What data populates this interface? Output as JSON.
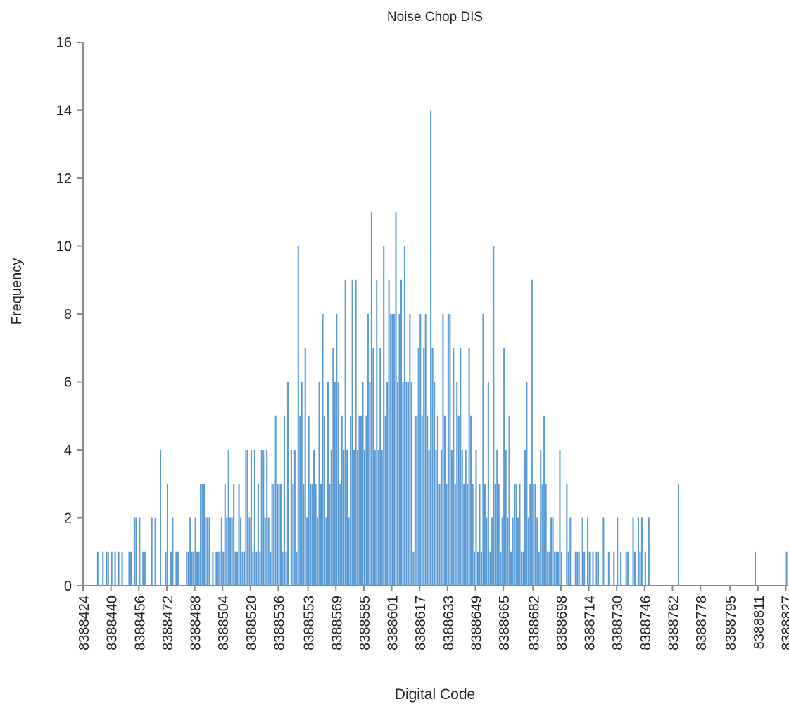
{
  "chart_data": {
    "type": "histogram",
    "title": "Noise Chop DIS",
    "x_label": "Digital Code",
    "y_label": "Frequency",
    "color": "#5b9bd5",
    "ylim": [
      0,
      16
    ],
    "yticks": [
      0,
      2,
      4,
      6,
      8,
      10,
      12,
      14,
      16
    ],
    "xlim": [
      8388424,
      8388828
    ],
    "xticks": [
      8388424,
      8388440,
      8388456,
      8388472,
      8388488,
      8388504,
      8388520,
      8388536,
      8388553,
      8388569,
      8388585,
      8388601,
      8388617,
      8388633,
      8388649,
      8388665,
      8388682,
      8388698,
      8388714,
      8388730,
      8388746,
      8388762,
      8388778,
      8388795,
      8388811,
      8388827
    ],
    "bins": [
      8388424,
      8388425,
      8388426,
      8388427,
      8388428,
      8388429,
      8388430,
      8388431,
      8388432,
      8388433,
      8388434,
      8388435,
      8388436,
      8388437,
      8388438,
      8388439,
      8388440,
      8388441,
      8388442,
      8388443,
      8388444,
      8388445,
      8388446,
      8388447,
      8388448,
      8388449,
      8388450,
      8388451,
      8388452,
      8388453,
      8388454,
      8388455,
      8388456,
      8388457,
      8388458,
      8388459,
      8388460,
      8388461,
      8388462,
      8388463,
      8388464,
      8388465,
      8388466,
      8388467,
      8388468,
      8388469,
      8388470,
      8388471,
      8388472,
      8388473,
      8388474,
      8388475,
      8388476,
      8388477,
      8388478,
      8388479,
      8388480,
      8388481,
      8388482,
      8388483,
      8388484,
      8388485,
      8388486,
      8388487,
      8388488,
      8388489,
      8388490,
      8388491,
      8388492,
      8388493,
      8388494,
      8388495,
      8388496,
      8388497,
      8388498,
      8388499,
      8388500,
      8388501,
      8388502,
      8388503,
      8388504,
      8388505,
      8388506,
      8388507,
      8388508,
      8388509,
      8388510,
      8388511,
      8388512,
      8388513,
      8388514,
      8388515,
      8388516,
      8388517,
      8388518,
      8388519,
      8388520,
      8388521,
      8388522,
      8388523,
      8388524,
      8388525,
      8388526,
      8388527,
      8388528,
      8388529,
      8388530,
      8388531,
      8388532,
      8388533,
      8388534,
      8388535,
      8388536,
      8388537,
      8388538,
      8388539,
      8388540,
      8388541,
      8388542,
      8388543,
      8388544,
      8388545,
      8388546,
      8388547,
      8388548,
      8388549,
      8388550,
      8388551,
      8388552,
      8388553,
      8388554,
      8388555,
      8388556,
      8388557,
      8388558,
      8388559,
      8388560,
      8388561,
      8388562,
      8388563,
      8388564,
      8388565,
      8388566,
      8388567,
      8388568,
      8388569,
      8388570,
      8388571,
      8388572,
      8388573,
      8388574,
      8388575,
      8388576,
      8388577,
      8388578,
      8388579,
      8388580,
      8388581,
      8388582,
      8388583,
      8388584,
      8388585,
      8388586,
      8388587,
      8388588,
      8388589,
      8388590,
      8388591,
      8388592,
      8388593,
      8388594,
      8388595,
      8388596,
      8388597,
      8388598,
      8388599,
      8388600,
      8388601,
      8388602,
      8388603,
      8388604,
      8388605,
      8388606,
      8388607,
      8388608,
      8388609,
      8388610,
      8388611,
      8388612,
      8388613,
      8388614,
      8388615,
      8388616,
      8388617,
      8388618,
      8388619,
      8388620,
      8388621,
      8388622,
      8388623,
      8388624,
      8388625,
      8388626,
      8388627,
      8388628,
      8388629,
      8388630,
      8388631,
      8388632,
      8388633,
      8388634,
      8388635,
      8388636,
      8388637,
      8388638,
      8388639,
      8388640,
      8388641,
      8388642,
      8388643,
      8388644,
      8388645,
      8388646,
      8388647,
      8388648,
      8388649,
      8388650,
      8388651,
      8388652,
      8388653,
      8388654,
      8388655,
      8388656,
      8388657,
      8388658,
      8388659,
      8388660,
      8388661,
      8388662,
      8388663,
      8388664,
      8388665,
      8388666,
      8388667,
      8388668,
      8388669,
      8388670,
      8388671,
      8388672,
      8388673,
      8388674,
      8388675,
      8388676,
      8388677,
      8388678,
      8388679,
      8388680,
      8388681,
      8388682,
      8388683,
      8388684,
      8388685,
      8388686,
      8388687,
      8388688,
      8388689,
      8388690,
      8388691,
      8388692,
      8388693,
      8388694,
      8388695,
      8388696,
      8388697,
      8388698,
      8388699,
      8388700,
      8388701,
      8388702,
      8388703,
      8388704,
      8388705,
      8388706,
      8388707,
      8388708,
      8388709,
      8388710,
      8388711,
      8388712,
      8388713,
      8388714,
      8388715,
      8388716,
      8388717,
      8388718,
      8388719,
      8388720,
      8388721,
      8388722,
      8388723,
      8388724,
      8388725,
      8388726,
      8388727,
      8388728,
      8388729,
      8388730,
      8388731,
      8388732,
      8388733,
      8388734,
      8388735,
      8388736,
      8388737,
      8388738,
      8388739,
      8388740,
      8388741,
      8388742,
      8388743,
      8388744,
      8388745,
      8388746,
      8388747,
      8388748,
      8388749,
      8388750,
      8388751,
      8388752,
      8388753,
      8388754,
      8388755,
      8388756,
      8388757,
      8388758,
      8388759,
      8388760,
      8388761,
      8388762,
      8388763,
      8388764,
      8388765,
      8388766,
      8388767,
      8388768,
      8388769,
      8388770,
      8388771,
      8388772,
      8388773,
      8388774,
      8388775,
      8388776,
      8388777,
      8388778,
      8388779,
      8388780,
      8388781,
      8388782,
      8388783,
      8388784,
      8388785,
      8388786,
      8388787,
      8388788,
      8388789,
      8388790,
      8388791,
      8388792,
      8388793,
      8388794,
      8388795,
      8388796,
      8388797,
      8388798,
      8388799,
      8388800,
      8388801,
      8388802,
      8388803,
      8388804,
      8388805,
      8388806,
      8388807,
      8388808,
      8388809,
      8388810,
      8388811,
      8388812,
      8388813,
      8388814,
      8388815,
      8388816,
      8388817,
      8388818,
      8388819,
      8388820,
      8388821,
      8388822,
      8388823,
      8388824,
      8388825,
      8388826,
      8388827,
      8388828
    ],
    "values": [
      0,
      0,
      0,
      0,
      0,
      0,
      0,
      0,
      1,
      0,
      0,
      1,
      0,
      1,
      1,
      0,
      1,
      0,
      1,
      0,
      1,
      0,
      1,
      0,
      0,
      0,
      1,
      1,
      0,
      2,
      2,
      0,
      2,
      0,
      1,
      1,
      0,
      0,
      0,
      2,
      0,
      2,
      0,
      0,
      4,
      0,
      0,
      1,
      3,
      0,
      1,
      2,
      0,
      1,
      1,
      0,
      0,
      0,
      0,
      1,
      1,
      2,
      1,
      1,
      2,
      1,
      1,
      3,
      3,
      3,
      2,
      2,
      2,
      0,
      1,
      0,
      1,
      1,
      1,
      2,
      1,
      3,
      2,
      4,
      2,
      2,
      3,
      1,
      1,
      3,
      2,
      1,
      1,
      4,
      4,
      2,
      4,
      1,
      4,
      1,
      3,
      1,
      4,
      4,
      2,
      4,
      2,
      1,
      3,
      3,
      5,
      3,
      3,
      3,
      1,
      5,
      1,
      6,
      0,
      4,
      3,
      4,
      1,
      10,
      5,
      6,
      3,
      7,
      2,
      5,
      3,
      3,
      4,
      3,
      2,
      6,
      3,
      8,
      5,
      2,
      6,
      3,
      4,
      7,
      6,
      8,
      6,
      3,
      5,
      4,
      9,
      4,
      2,
      5,
      9,
      4,
      9,
      4,
      5,
      5,
      6,
      4,
      5,
      8,
      6,
      11,
      7,
      4,
      9,
      4,
      7,
      4,
      10,
      5,
      6,
      9,
      8,
      8,
      8,
      11,
      6,
      8,
      9,
      6,
      10,
      6,
      6,
      8,
      6,
      1,
      5,
      5,
      7,
      8,
      5,
      7,
      8,
      5,
      4,
      14,
      7,
      6,
      4,
      5,
      3,
      4,
      8,
      5,
      3,
      8,
      8,
      4,
      7,
      3,
      6,
      5,
      7,
      4,
      3,
      4,
      3,
      7,
      5,
      3,
      1,
      4,
      1,
      3,
      1,
      8,
      3,
      2,
      6,
      1,
      2,
      10,
      3,
      4,
      3,
      1,
      2,
      7,
      4,
      2,
      5,
      1,
      2,
      3,
      3,
      2,
      3,
      1,
      1,
      4,
      6,
      2,
      3,
      9,
      3,
      3,
      2,
      1,
      4,
      3,
      5,
      3,
      1,
      1,
      2,
      2,
      1,
      1,
      1,
      4,
      1,
      0,
      0,
      3,
      1,
      2,
      0,
      0,
      1,
      1,
      1,
      0,
      2,
      1,
      0,
      2,
      1,
      0,
      1,
      0,
      1,
      1,
      0,
      0,
      2,
      0,
      0,
      1,
      0,
      0,
      1,
      0,
      2,
      0,
      1,
      0,
      0,
      1,
      1,
      0,
      0,
      2,
      1,
      0,
      2,
      1,
      2,
      0,
      1,
      0,
      2,
      0,
      0,
      0,
      0,
      0,
      0,
      0,
      0,
      0,
      0,
      0,
      0,
      0,
      0,
      0,
      0,
      3,
      0,
      0,
      0,
      0,
      0,
      0,
      0,
      0,
      0,
      0,
      0,
      0,
      0,
      0,
      0,
      0,
      0,
      0,
      0,
      0,
      0,
      0,
      0,
      0,
      0,
      0,
      0,
      0,
      0,
      0,
      0,
      0,
      0,
      0,
      0,
      0,
      0,
      0,
      0,
      0,
      0,
      0,
      0,
      1,
      0,
      0,
      0,
      0,
      0,
      0,
      0,
      0,
      0,
      0,
      0,
      0,
      0,
      0,
      0,
      0,
      0,
      1
    ]
  }
}
